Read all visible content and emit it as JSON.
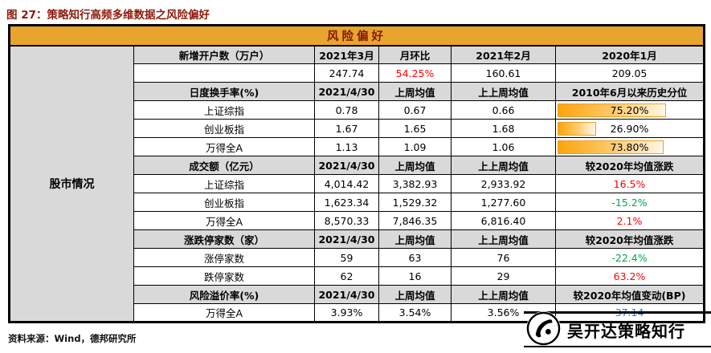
{
  "title": "图 27：策略知行高频多维数据之风险偏好",
  "footer": "资料来源：Wind，德邦研究所",
  "watermark": {
    "brand": "吴开达策略知行"
  },
  "colors": {
    "red": "#FF0000",
    "green": "#00A650",
    "blue": "#2E75B6",
    "gold_header": "#E9A42C",
    "header_text": "#82180B",
    "section_gray": "#D9D9D9",
    "bar_fill": "#FCA40E",
    "bar_border": "#EE9E23",
    "title_red": "#8E1A0B"
  },
  "chart_data": {
    "type": "table",
    "title": "风险偏好",
    "row_group_label": "股市情况",
    "sections": [
      {
        "header": [
          "新增开户数（万户）",
          "2021年3月",
          "月环比",
          "2021年2月",
          "2020年1月"
        ],
        "rows": [
          {
            "cells": [
              {
                "text": ""
              },
              {
                "text": "247.74"
              },
              {
                "text": "54.25%",
                "color": "red"
              },
              {
                "text": "160.61"
              },
              {
                "text": "209.05"
              }
            ]
          }
        ]
      },
      {
        "header": [
          "日度换手率(%)",
          "2021/4/30",
          "上周均值",
          "上上周均值",
          "2010年6月以来历史分位"
        ],
        "rows": [
          {
            "cells": [
              {
                "text": "上证综指"
              },
              {
                "text": "0.78"
              },
              {
                "text": "0.67"
              },
              {
                "text": "0.66"
              },
              {
                "text": "75.20%",
                "bar": 75.2
              }
            ]
          },
          {
            "cells": [
              {
                "text": "创业板指"
              },
              {
                "text": "1.67"
              },
              {
                "text": "1.65"
              },
              {
                "text": "1.68"
              },
              {
                "text": "26.90%",
                "bar": 26.9
              }
            ]
          },
          {
            "cells": [
              {
                "text": "万得全A"
              },
              {
                "text": "1.13"
              },
              {
                "text": "1.09"
              },
              {
                "text": "1.06"
              },
              {
                "text": "73.80%",
                "bar": 73.8
              }
            ]
          }
        ]
      },
      {
        "header": [
          "成交额（亿元）",
          "2021/4/30",
          "上周均值",
          "上上周均值",
          "较2020年均值涨跌"
        ],
        "rows": [
          {
            "cells": [
              {
                "text": "上证综指"
              },
              {
                "text": "4,014.42"
              },
              {
                "text": "3,382.93"
              },
              {
                "text": "2,933.92"
              },
              {
                "text": "16.5%",
                "color": "red"
              }
            ]
          },
          {
            "cells": [
              {
                "text": "创业板指"
              },
              {
                "text": "1,623.34"
              },
              {
                "text": "1,529.32"
              },
              {
                "text": "1,277.60"
              },
              {
                "text": "-15.2%",
                "color": "green"
              }
            ]
          },
          {
            "cells": [
              {
                "text": "万得全A"
              },
              {
                "text": "8,570.33"
              },
              {
                "text": "7,846.35"
              },
              {
                "text": "6,816.40"
              },
              {
                "text": "2.1%",
                "color": "red"
              }
            ]
          }
        ]
      },
      {
        "header": [
          "涨跌停家数（家）",
          "2021/4/30",
          "上周均值",
          "上上周均值",
          "较2020年均值涨跌"
        ],
        "rows": [
          {
            "cells": [
              {
                "text": "涨停家数"
              },
              {
                "text": "59"
              },
              {
                "text": "63"
              },
              {
                "text": "76"
              },
              {
                "text": "-22.4%",
                "color": "green"
              }
            ]
          },
          {
            "cells": [
              {
                "text": "跌停家数"
              },
              {
                "text": "62"
              },
              {
                "text": "16"
              },
              {
                "text": "29"
              },
              {
                "text": "63.2%",
                "color": "red"
              }
            ]
          }
        ]
      },
      {
        "header": [
          "风险溢价率(%)",
          "2021/4/30",
          "上周均值",
          "上上周均值",
          "较2020年均值变动(BP)"
        ],
        "rows": [
          {
            "cells": [
              {
                "text": "万得全A"
              },
              {
                "text": "3.93%"
              },
              {
                "text": "3.54%"
              },
              {
                "text": "3.56%"
              },
              {
                "text": "37.14",
                "color": "blue"
              }
            ]
          }
        ]
      }
    ]
  }
}
